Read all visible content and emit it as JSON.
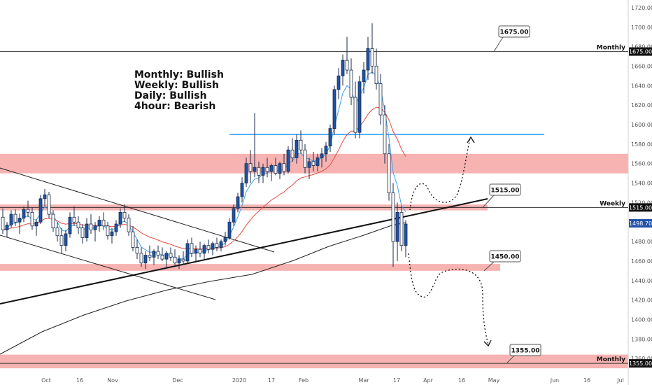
{
  "bias": [
    {
      "text": "Monthly: Bullish"
    },
    {
      "text": "Weekly: Bullish"
    },
    {
      "text": "Daily: Bullish"
    },
    {
      "text": "4hour: Bearish"
    }
  ],
  "colors": {
    "zone": "#f4a6a3",
    "candle_up": "#1e53a8",
    "candle_down": "#ffffff",
    "ema_fast": "#3fa0e6",
    "ema_slow": "#e34b3f",
    "ma_long": "#222222",
    "resistance_line": "#2196f3",
    "price_tag": "#1e53a8",
    "level_tag": "#111111"
  },
  "chart_data": {
    "type": "candlestick",
    "ylim": [
      1340,
      1725
    ],
    "yticks": [
      1360,
      1380,
      1400,
      1420,
      1440,
      1460,
      1480,
      1500,
      1520,
      1540,
      1560,
      1580,
      1600,
      1620,
      1640,
      1660,
      1680,
      1700,
      1720
    ],
    "ytick_labels": [
      "1360.00",
      "1380.00",
      "1400.00",
      "1420.00",
      "1440.00",
      "1460.00",
      "1480.00",
      "1500.00",
      "1520.00",
      "1540.00",
      "1560.00",
      "1580.00",
      "1600.00",
      "1620.00",
      "1640.00",
      "1660.00",
      "1680.00",
      "1700.00",
      "1720.00"
    ],
    "xtick_labels": [
      "Oct",
      "16",
      "Nov",
      "Dec",
      "2020",
      "17",
      "Feb",
      "Mar",
      "17",
      "Apr",
      "16",
      "May",
      "Jun",
      "16",
      "Jul"
    ],
    "current_price": "1498.70",
    "levels": [
      {
        "value": 1675,
        "callout": "1675.00",
        "name": "Monthly",
        "tag": "1675.00"
      },
      {
        "value": 1515,
        "callout": "1515.00",
        "name": "Weekly",
        "tag": "1515.00"
      },
      {
        "value": 1450,
        "callout": "1450.00"
      },
      {
        "value": 1355,
        "callout": "1355.00",
        "name": "Monthly",
        "tag": "1355.00"
      }
    ],
    "zones": [
      {
        "from": 1550,
        "to": 1570
      },
      {
        "from": 1512,
        "to": 1518
      },
      {
        "from": 1450,
        "to": 1457
      },
      {
        "from": 1350,
        "to": 1364
      }
    ],
    "resistance": 1590,
    "candles_summary": "approx. daily OHLC Sep 2019 – Mar 2020",
    "ohlc": [
      [
        1505,
        1514,
        1488,
        1492
      ],
      [
        1492,
        1500,
        1484,
        1497
      ],
      [
        1497,
        1512,
        1494,
        1508
      ],
      [
        1508,
        1513,
        1496,
        1500
      ],
      [
        1500,
        1509,
        1488,
        1504
      ],
      [
        1504,
        1516,
        1500,
        1513
      ],
      [
        1513,
        1522,
        1505,
        1510
      ],
      [
        1510,
        1515,
        1492,
        1496
      ],
      [
        1496,
        1503,
        1486,
        1500
      ],
      [
        1500,
        1528,
        1498,
        1524
      ],
      [
        1524,
        1534,
        1516,
        1528
      ],
      [
        1528,
        1531,
        1504,
        1508
      ],
      [
        1508,
        1512,
        1490,
        1494
      ],
      [
        1494,
        1500,
        1480,
        1486
      ],
      [
        1486,
        1494,
        1468,
        1476
      ],
      [
        1476,
        1492,
        1470,
        1488
      ],
      [
        1488,
        1510,
        1484,
        1505
      ],
      [
        1505,
        1516,
        1496,
        1500
      ],
      [
        1500,
        1506,
        1488,
        1494
      ],
      [
        1494,
        1498,
        1478,
        1484
      ],
      [
        1484,
        1504,
        1480,
        1498
      ],
      [
        1498,
        1508,
        1488,
        1492
      ],
      [
        1492,
        1500,
        1480,
        1496
      ],
      [
        1496,
        1506,
        1490,
        1502
      ],
      [
        1502,
        1510,
        1492,
        1496
      ],
      [
        1496,
        1500,
        1482,
        1486
      ],
      [
        1486,
        1494,
        1478,
        1490
      ],
      [
        1490,
        1502,
        1486,
        1498
      ],
      [
        1498,
        1514,
        1494,
        1510
      ],
      [
        1510,
        1518,
        1500,
        1504
      ],
      [
        1504,
        1508,
        1486,
        1490
      ],
      [
        1490,
        1496,
        1470,
        1474
      ],
      [
        1474,
        1482,
        1462,
        1468
      ],
      [
        1468,
        1474,
        1454,
        1458
      ],
      [
        1458,
        1470,
        1452,
        1466
      ],
      [
        1466,
        1476,
        1460,
        1464
      ],
      [
        1464,
        1472,
        1456,
        1470
      ],
      [
        1470,
        1476,
        1462,
        1466
      ],
      [
        1466,
        1474,
        1460,
        1462
      ],
      [
        1462,
        1470,
        1452,
        1468
      ],
      [
        1468,
        1474,
        1460,
        1464
      ],
      [
        1464,
        1472,
        1456,
        1458
      ],
      [
        1458,
        1466,
        1452,
        1462
      ],
      [
        1462,
        1470,
        1456,
        1460
      ],
      [
        1460,
        1482,
        1458,
        1478
      ],
      [
        1478,
        1484,
        1464,
        1468
      ],
      [
        1468,
        1476,
        1460,
        1472
      ],
      [
        1472,
        1480,
        1464,
        1468
      ],
      [
        1468,
        1478,
        1462,
        1476
      ],
      [
        1476,
        1482,
        1468,
        1472
      ],
      [
        1472,
        1480,
        1466,
        1478
      ],
      [
        1478,
        1484,
        1470,
        1474
      ],
      [
        1474,
        1482,
        1470,
        1480
      ],
      [
        1480,
        1490,
        1476,
        1484
      ],
      [
        1484,
        1504,
        1482,
        1500
      ],
      [
        1500,
        1518,
        1496,
        1514
      ],
      [
        1514,
        1530,
        1510,
        1526
      ],
      [
        1526,
        1546,
        1520,
        1540
      ],
      [
        1540,
        1566,
        1536,
        1560
      ],
      [
        1560,
        1574,
        1540,
        1552
      ],
      [
        1552,
        1612,
        1546,
        1556
      ],
      [
        1556,
        1562,
        1540,
        1548
      ],
      [
        1548,
        1560,
        1540,
        1556
      ],
      [
        1556,
        1566,
        1546,
        1552
      ],
      [
        1552,
        1560,
        1542,
        1558
      ],
      [
        1558,
        1566,
        1548,
        1550
      ],
      [
        1550,
        1562,
        1544,
        1560
      ],
      [
        1560,
        1570,
        1548,
        1552
      ],
      [
        1552,
        1578,
        1550,
        1574
      ],
      [
        1574,
        1586,
        1562,
        1566
      ],
      [
        1566,
        1590,
        1560,
        1584
      ],
      [
        1584,
        1594,
        1570,
        1574
      ],
      [
        1574,
        1580,
        1550,
        1556
      ],
      [
        1556,
        1566,
        1544,
        1562
      ],
      [
        1562,
        1572,
        1552,
        1558
      ],
      [
        1558,
        1570,
        1552,
        1566
      ],
      [
        1566,
        1576,
        1556,
        1570
      ],
      [
        1570,
        1582,
        1562,
        1578
      ],
      [
        1578,
        1600,
        1572,
        1596
      ],
      [
        1596,
        1640,
        1590,
        1636
      ],
      [
        1636,
        1658,
        1626,
        1650
      ],
      [
        1650,
        1672,
        1640,
        1666
      ],
      [
        1666,
        1690,
        1652,
        1656
      ],
      [
        1656,
        1668,
        1620,
        1628
      ],
      [
        1628,
        1644,
        1586,
        1592
      ],
      [
        1592,
        1650,
        1586,
        1644
      ],
      [
        1644,
        1664,
        1632,
        1656
      ],
      [
        1656,
        1690,
        1646,
        1678
      ],
      [
        1678,
        1704,
        1652,
        1660
      ],
      [
        1660,
        1678,
        1636,
        1642
      ],
      [
        1642,
        1652,
        1600,
        1610
      ],
      [
        1610,
        1620,
        1560,
        1570
      ],
      [
        1570,
        1580,
        1522,
        1530
      ],
      [
        1530,
        1540,
        1454,
        1480
      ],
      [
        1480,
        1520,
        1460,
        1510
      ],
      [
        1510,
        1516,
        1470,
        1476
      ],
      [
        1476,
        1502,
        1464,
        1498
      ]
    ]
  }
}
